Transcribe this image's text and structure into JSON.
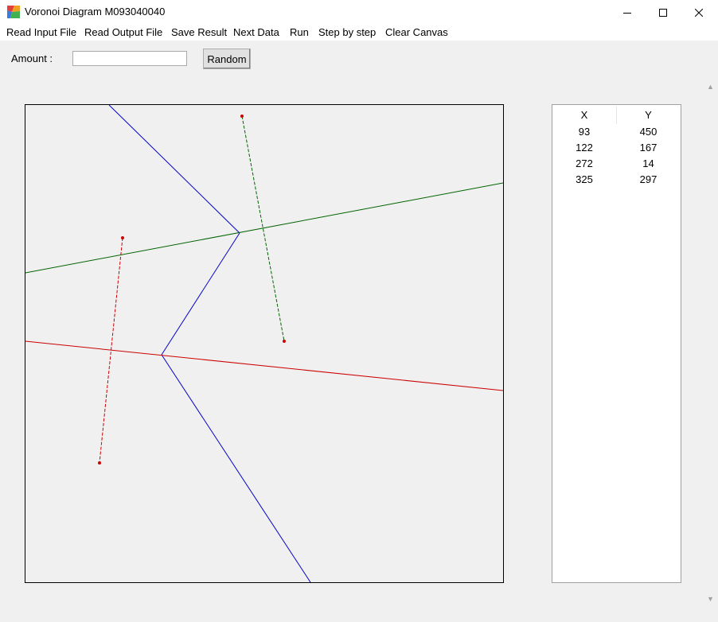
{
  "window": {
    "title": "Voronoi Diagram M093040040"
  },
  "menu": [
    "Read Input File",
    "Read Output File",
    "Save Result",
    "Next Data",
    "Run",
    "Step by step",
    "Clear Canvas"
  ],
  "controls": {
    "amount_label": "Amount :",
    "amount_value": "",
    "random_label": "Random"
  },
  "point_list": {
    "x_header": "X",
    "y_header": "Y",
    "rows": [
      {
        "x": "93",
        "y": "450"
      },
      {
        "x": "122",
        "y": "167"
      },
      {
        "x": "272",
        "y": "14"
      },
      {
        "x": "325",
        "y": "297"
      }
    ]
  },
  "colors": {
    "site": "#cc0000",
    "blue_edge": "#0000cc",
    "green_edge": "#006400",
    "red_edge": "#cc0000"
  }
}
